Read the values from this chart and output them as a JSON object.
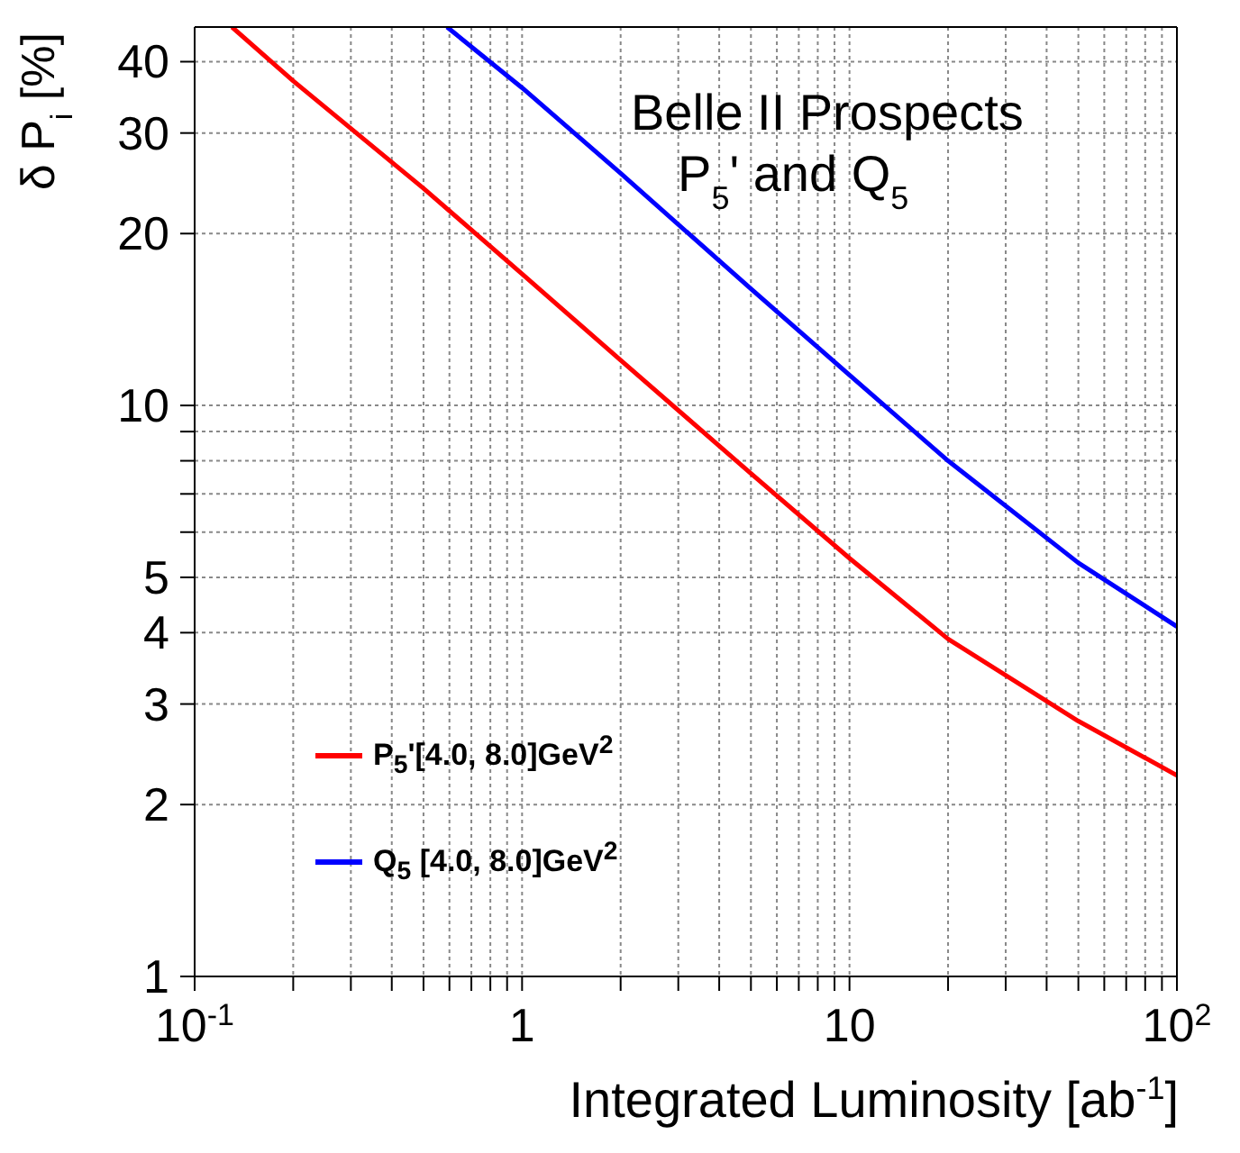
{
  "chart_data": {
    "type": "line",
    "xlabel": "Integrated Luminosity    [ab$^{-1}$]",
    "ylabel": "δ P$_{i}$ [%]",
    "annotations": [
      "Belle II Prospects",
      "P$_{5}$' and Q$_{5}$"
    ],
    "log": "xy",
    "grid": true,
    "legend": "left",
    "line_style": "solid",
    "marker": "none",
    "xlim": [
      0.1,
      100
    ],
    "ylim": [
      1,
      46
    ],
    "xticks": [
      {
        "value": 0.1,
        "label": "10$^{-1}$"
      },
      {
        "value": 0.2,
        "label": null
      },
      {
        "value": 0.3,
        "label": null
      },
      {
        "value": 0.4,
        "label": null
      },
      {
        "value": 0.5,
        "label": null
      },
      {
        "value": 0.6,
        "label": null
      },
      {
        "value": 0.7,
        "label": null
      },
      {
        "value": 0.8,
        "label": null
      },
      {
        "value": 0.9,
        "label": null
      },
      1,
      {
        "value": 2,
        "label": null
      },
      {
        "value": 3,
        "label": null
      },
      {
        "value": 4,
        "label": null
      },
      {
        "value": 5,
        "label": null
      },
      {
        "value": 6,
        "label": null
      },
      {
        "value": 7,
        "label": null
      },
      {
        "value": 8,
        "label": null
      },
      {
        "value": 9,
        "label": null
      },
      10,
      {
        "value": 20,
        "label": null
      },
      {
        "value": 30,
        "label": null
      },
      {
        "value": 40,
        "label": null
      },
      {
        "value": 50,
        "label": null
      },
      {
        "value": 60,
        "label": null
      },
      {
        "value": 70,
        "label": null
      },
      {
        "value": 80,
        "label": null
      },
      {
        "value": 90,
        "label": null
      },
      {
        "value": 100,
        "label": "10$^{2}$"
      }
    ],
    "yticks": [
      1,
      2,
      3,
      4,
      5,
      {
        "value": 6,
        "label": null
      },
      {
        "value": 7,
        "label": null
      },
      {
        "value": 8,
        "label": null
      },
      {
        "value": 9,
        "label": null
      },
      10,
      20,
      30,
      40
    ],
    "series": [
      {
        "name": "P$_{5}$'[4.0, 8.0]GeV$^{2}$",
        "color": "#ff0000",
        "x": [
          0.13,
          0.2,
          0.5,
          1,
          2,
          5,
          10,
          20,
          50,
          100
        ],
        "values": [
          46,
          37,
          24,
          17,
          12,
          7.6,
          5.4,
          3.9,
          2.8,
          2.25
        ]
      },
      {
        "name": "Q$_{5}$ [4.0, 8.0]GeV$^{2}$",
        "color": "#0000ff",
        "x": [
          0.59,
          1,
          2,
          5,
          10,
          20,
          50,
          100
        ],
        "values": [
          46,
          36,
          25.5,
          16,
          11.3,
          8,
          5.3,
          4.1
        ]
      }
    ]
  }
}
